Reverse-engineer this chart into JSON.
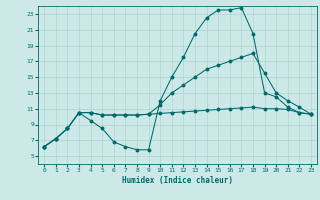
{
  "xlabel": "Humidex (Indice chaleur)",
  "bg_color": "#cce9e8",
  "grid_color": "#aed4d3",
  "line_color": "#006b6b",
  "xlim": [
    -0.5,
    23.5
  ],
  "ylim": [
    4,
    24
  ],
  "yticks": [
    5,
    7,
    9,
    11,
    13,
    15,
    17,
    19,
    21,
    23
  ],
  "xticks": [
    0,
    1,
    2,
    3,
    4,
    5,
    6,
    7,
    8,
    9,
    10,
    11,
    12,
    13,
    14,
    15,
    16,
    17,
    18,
    19,
    20,
    21,
    22,
    23
  ],
  "line1_x": [
    0,
    1,
    2,
    3,
    4,
    5,
    6,
    7,
    8,
    9,
    10,
    11,
    12,
    13,
    14,
    15,
    16,
    17,
    18,
    19,
    20,
    21,
    22,
    23
  ],
  "line1_y": [
    6.2,
    7.2,
    8.5,
    10.5,
    10.5,
    10.2,
    10.2,
    10.2,
    10.2,
    10.3,
    10.4,
    10.5,
    10.6,
    10.7,
    10.8,
    10.9,
    11.0,
    11.1,
    11.2,
    11.0,
    11.0,
    10.9,
    10.5,
    10.3
  ],
  "line2_x": [
    0,
    1,
    2,
    3,
    4,
    5,
    6,
    7,
    8,
    9,
    10,
    11,
    12,
    13,
    14,
    15,
    16,
    17,
    18,
    19,
    20,
    21,
    22,
    23
  ],
  "line2_y": [
    6.2,
    7.2,
    8.5,
    10.5,
    9.5,
    8.5,
    6.8,
    6.2,
    5.8,
    5.8,
    12,
    15,
    17.5,
    20.5,
    22.5,
    23.5,
    23.5,
    23.8,
    20.5,
    13,
    12.5,
    11.2,
    10.5,
    10.3
  ],
  "line3_x": [
    0,
    1,
    2,
    3,
    4,
    5,
    6,
    7,
    8,
    9,
    10,
    11,
    12,
    13,
    14,
    15,
    16,
    17,
    18,
    19,
    20,
    21,
    22,
    23
  ],
  "line3_y": [
    6.2,
    7.2,
    8.5,
    10.5,
    10.5,
    10.2,
    10.2,
    10.2,
    10.2,
    10.3,
    11.5,
    13,
    14,
    15,
    16,
    16.5,
    17,
    17.5,
    18,
    15.5,
    13,
    12,
    11.2,
    10.3
  ]
}
